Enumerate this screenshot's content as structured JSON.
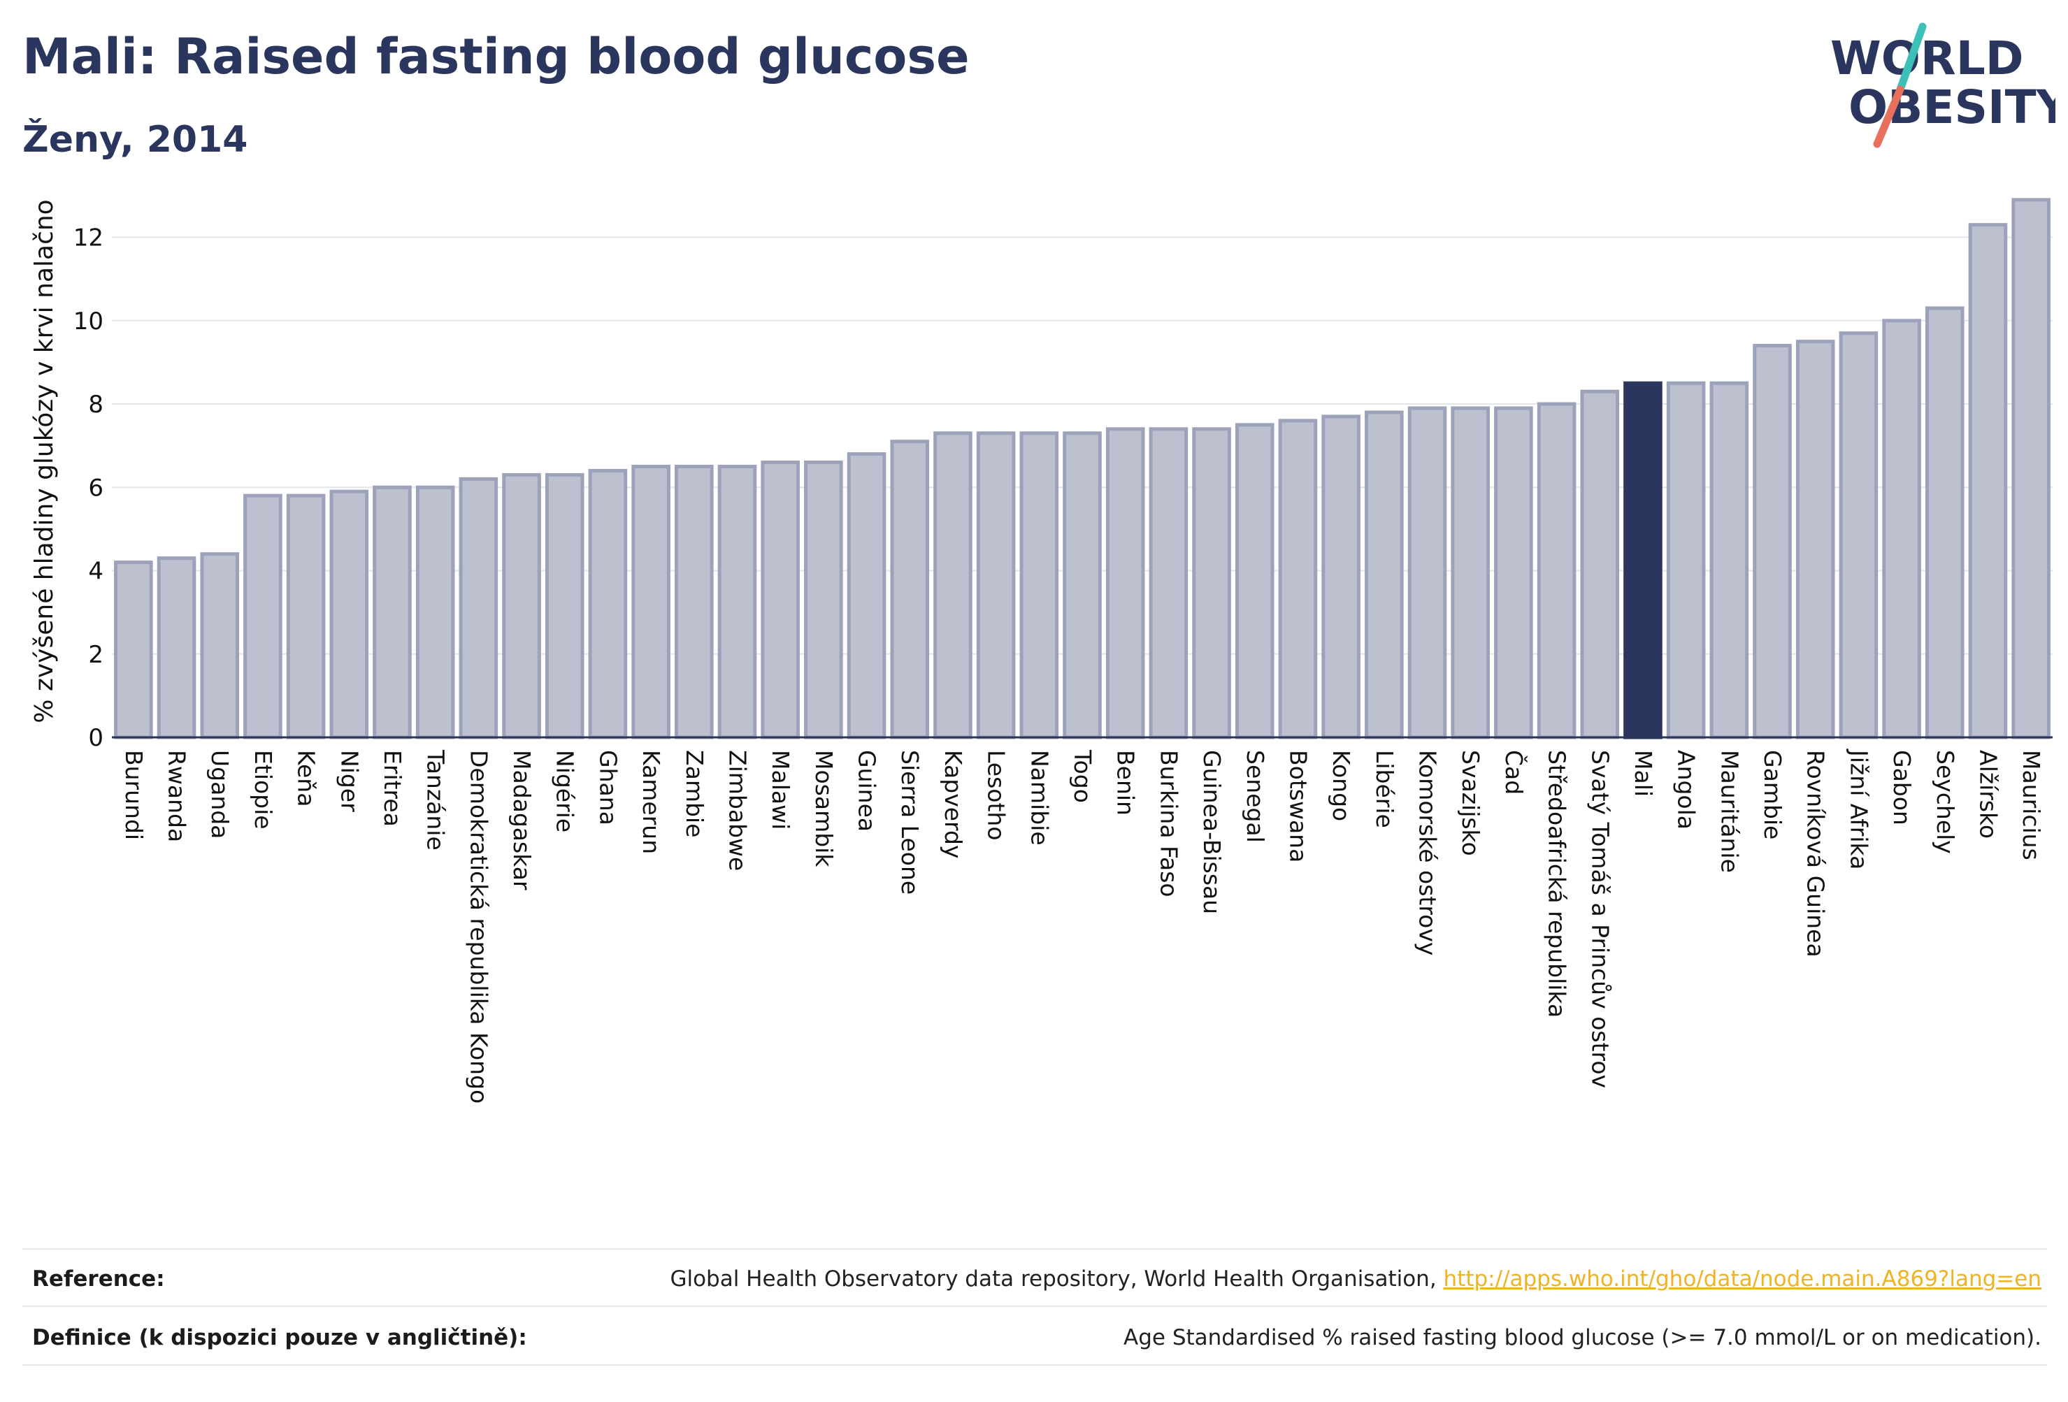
{
  "header": {
    "title": "Mali: Raised fasting blood glucose",
    "subtitle": "Ženy, 2014"
  },
  "logo": {
    "line1": "WORLD",
    "line2": "OBESITY",
    "text_color": "#2b365f",
    "accent_top": "#3cc0b8",
    "accent_bottom": "#e8705d"
  },
  "colors": {
    "bar_fill": "#bcc0cf",
    "bar_stroke": "#9ca2b9",
    "highlight": "#2b365f",
    "grid": "#e3e5ec",
    "axis_text": "#111111"
  },
  "chart_data": {
    "type": "bar",
    "ylabel": "% zvýšené hladiny glukózy v krvi nalačno",
    "ylim": [
      0,
      13.2
    ],
    "yticks": [
      0,
      2,
      4,
      6,
      8,
      10,
      12
    ],
    "grid": true,
    "highlight": "Mali",
    "categories": [
      "Burundi",
      "Rwanda",
      "Uganda",
      "Etiopie",
      "Keňa",
      "Niger",
      "Eritrea",
      "Tanzánie",
      "Demokratická republika Kongo",
      "Madagaskar",
      "Nigérie",
      "Ghana",
      "Kamerun",
      "Zambie",
      "Zimbabwe",
      "Malawi",
      "Mosambik",
      "Guinea",
      "Sierra Leone",
      "Kapverdy",
      "Lesotho",
      "Namibie",
      "Togo",
      "Benin",
      "Burkina Faso",
      "Guinea-Bissau",
      "Senegal",
      "Botswana",
      "Kongo",
      "Libérie",
      "Komorské ostrovy",
      "Svazijsko",
      "Čad",
      "Středoafrická republika",
      "Svatý Tomáš a Princův ostrov",
      "Mali",
      "Angola",
      "Mauritánie",
      "Gambie",
      "Rovníková Guinea",
      "Jižní Afrika",
      "Gabon",
      "Seychely",
      "Alžírsko",
      "Mauricius"
    ],
    "values": [
      4.2,
      4.3,
      4.4,
      5.8,
      5.8,
      5.9,
      6.0,
      6.0,
      6.2,
      6.3,
      6.3,
      6.4,
      6.5,
      6.5,
      6.5,
      6.6,
      6.6,
      6.8,
      7.1,
      7.3,
      7.3,
      7.3,
      7.3,
      7.4,
      7.4,
      7.4,
      7.5,
      7.6,
      7.7,
      7.8,
      7.9,
      7.9,
      7.9,
      8.0,
      8.3,
      8.5,
      8.5,
      8.5,
      9.4,
      9.5,
      9.7,
      10.0,
      10.3,
      12.3,
      12.9
    ]
  },
  "footer": {
    "reference_label": "Reference:",
    "reference_text": "Global Health Observatory data repository, World Health Organisation, ",
    "reference_link": "http://apps.who.int/gho/data/node.main.A869?lang=en",
    "definition_label": "Definice (k dispozici pouze v angličtině):",
    "definition_text": "Age Standardised % raised fasting blood glucose (>= 7.0 mmol/L or on medication)."
  }
}
